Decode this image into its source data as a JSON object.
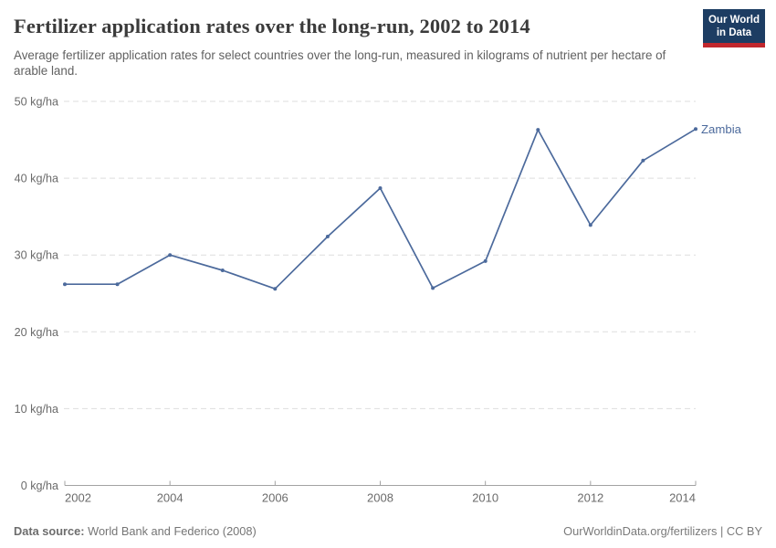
{
  "header": {
    "title": "Fertilizer application rates over the long-run, 2002 to 2014",
    "subtitle": "Average fertilizer application rates for select countries over the long-run, measured in kilograms of nutrient per hectare of arable land.",
    "logo_line1": "Our World",
    "logo_line2": "in Data"
  },
  "chart_data": {
    "type": "line",
    "title": "Fertilizer application rates over the long-run, 2002 to 2014",
    "x": [
      2002,
      2003,
      2004,
      2005,
      2006,
      2007,
      2008,
      2009,
      2010,
      2011,
      2012,
      2013,
      2014
    ],
    "series": [
      {
        "name": "Zambia",
        "values": [
          26.2,
          26.2,
          30.0,
          28.0,
          25.6,
          32.4,
          38.7,
          25.7,
          29.2,
          46.3,
          33.9,
          42.3,
          46.4
        ]
      }
    ],
    "xlabel": "",
    "ylabel": "",
    "unit": "kg/ha",
    "xlim": [
      2002,
      2014
    ],
    "ylim": [
      0,
      50
    ],
    "xticks": [
      2002,
      2004,
      2006,
      2008,
      2010,
      2012,
      2014
    ],
    "yticks": [
      0,
      10,
      20,
      30,
      40,
      50
    ],
    "ytick_labels": [
      "0 kg/ha",
      "10 kg/ha",
      "20 kg/ha",
      "30 kg/ha",
      "40 kg/ha",
      "50 kg/ha"
    ],
    "grid": "horizontal dashed",
    "legend": "inline end-of-line label",
    "end_label": "Zambia"
  },
  "footer": {
    "source_label": "Data source:",
    "source_text": "World Bank and Federico (2008)",
    "credit": "OurWorldinData.org/fertilizers | CC BY"
  },
  "colors": {
    "series": "#4C6A9C",
    "grid": "#dedede",
    "axis": "#a3a3a3",
    "tick_text": "#6b6b6b",
    "logo_bg": "#1d3d63",
    "logo_stripe": "#c1272d"
  }
}
